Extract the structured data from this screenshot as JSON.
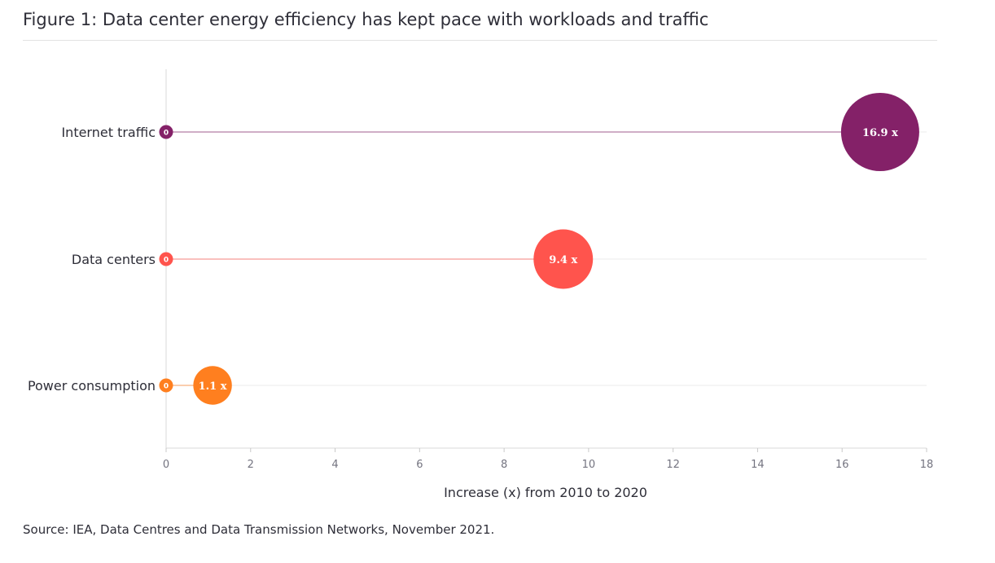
{
  "figure": {
    "title": "Figure 1: Data center energy efficiency has kept pace with workloads and traffic",
    "source": "Source: IEA, Data Centres and Data Transmission Networks, November 2021."
  },
  "chart_data": {
    "type": "dumbbell",
    "title": "Figure 1: Data center energy efficiency has kept pace with workloads and traffic",
    "xlabel": "Increase (x) from 2010 to 2020",
    "ylabel": "",
    "xlim": [
      0,
      18
    ],
    "x_ticks": [
      0,
      2,
      4,
      6,
      8,
      10,
      12,
      14,
      16,
      18
    ],
    "x_tick_labels": [
      "0",
      "2",
      "4",
      "6",
      "8",
      "10",
      "12",
      "14",
      "16",
      "18"
    ],
    "grid": "horizontal",
    "legend": "none",
    "categories": [
      "Internet traffic",
      "Data centers",
      "Power consumption"
    ],
    "series": [
      {
        "start": 0,
        "end": 16.9,
        "start_label": "0",
        "end_label": "16.9 x",
        "color": "#842168"
      },
      {
        "start": 0,
        "end": 9.4,
        "start_label": "0",
        "end_label": "9.4 x",
        "color": "#ff544d"
      },
      {
        "start": 0,
        "end": 1.1,
        "start_label": "0",
        "end_label": "1.1 x",
        "color": "#ff7f1f"
      }
    ]
  }
}
